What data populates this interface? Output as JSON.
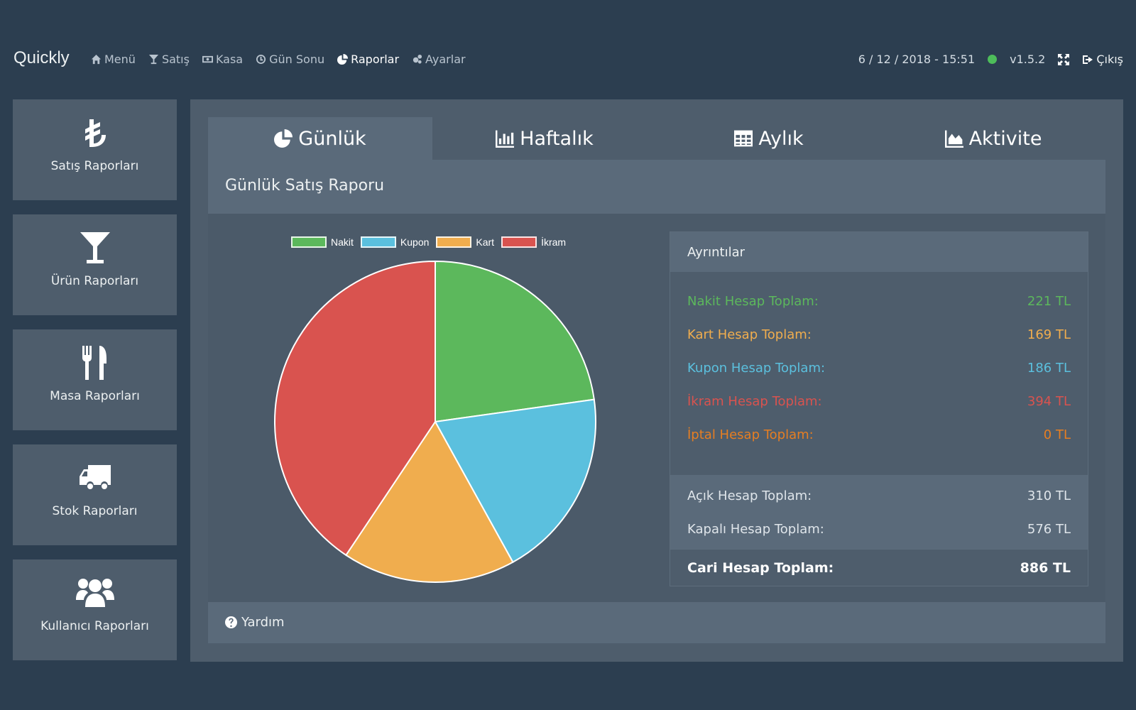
{
  "navbar": {
    "brand": "Quickly",
    "items": [
      {
        "label": "Menü",
        "icon": "home-icon"
      },
      {
        "label": "Satış",
        "icon": "glass-icon"
      },
      {
        "label": "Kasa",
        "icon": "money-icon"
      },
      {
        "label": "Gün Sonu",
        "icon": "clock-icon"
      },
      {
        "label": "Raporlar",
        "icon": "pie-chart-icon"
      },
      {
        "label": "Ayarlar",
        "icon": "gears-icon"
      }
    ],
    "datetime": "6 / 12 / 2018 - 15:51",
    "version": "v1.5.2",
    "logout": "Çıkış"
  },
  "sidebar": {
    "items": [
      {
        "label": "Satış Raporları",
        "icon": "lira-icon"
      },
      {
        "label": "Ürün Raporları",
        "icon": "cocktail-glass-icon"
      },
      {
        "label": "Masa Raporları",
        "icon": "cutlery-icon"
      },
      {
        "label": "Stok Raporları",
        "icon": "truck-icon"
      },
      {
        "label": "Kullanıcı Raporları",
        "icon": "users-icon"
      }
    ]
  },
  "tabs": [
    {
      "label": "Günlük",
      "icon": "pie-chart-icon",
      "active": true
    },
    {
      "label": "Haftalık",
      "icon": "bar-chart-icon",
      "active": false
    },
    {
      "label": "Aylık",
      "icon": "table-icon",
      "active": false
    },
    {
      "label": "Aktivite",
      "icon": "area-chart-icon",
      "active": false
    }
  ],
  "report": {
    "title": "Günlük Satış Raporu",
    "help": "Yardım"
  },
  "chart_data": {
    "type": "pie",
    "categories": [
      "Nakit",
      "Kupon",
      "Kart",
      "İkram"
    ],
    "values": [
      221,
      186,
      169,
      394
    ],
    "colors": [
      "#5cb85c",
      "#5bc0de",
      "#f0ad4e",
      "#d9534f"
    ],
    "legend": "top"
  },
  "details": {
    "title": "Ayrıntılar",
    "rows": [
      {
        "label": "Nakit Hesap Toplam:",
        "value": "221 TL",
        "color": "#5cb85c"
      },
      {
        "label": "Kart Hesap Toplam:",
        "value": "169 TL",
        "color": "#f0ad4e"
      },
      {
        "label": "Kupon Hesap Toplam:",
        "value": "186 TL",
        "color": "#5bc0de"
      },
      {
        "label": "İkram Hesap Toplam:",
        "value": "394 TL",
        "color": "#d9534f"
      },
      {
        "label": "İptal Hesap Toplam:",
        "value": "0 TL",
        "color": "#e67e22"
      }
    ],
    "totals": [
      {
        "label": "Açık Hesap Toplam:",
        "value": "310 TL"
      },
      {
        "label": "Kapalı Hesap Toplam:",
        "value": "576 TL"
      }
    ],
    "grand": {
      "label": "Cari Hesap Toplam:",
      "value": "886 TL"
    }
  }
}
